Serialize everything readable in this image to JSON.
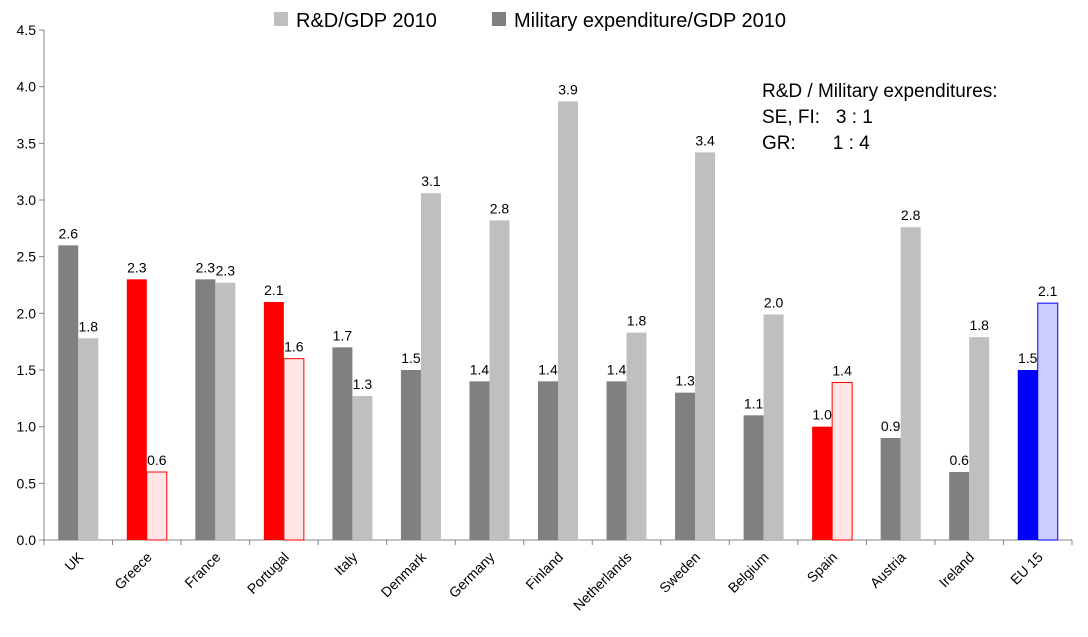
{
  "chart_data": {
    "type": "bar",
    "categories": [
      "UK",
      "Greece",
      "France",
      "Portugal",
      "Italy",
      "Denmark",
      "Germany",
      "Finland",
      "Netherlands",
      "Sweden",
      "Belgium",
      "Spain",
      "Austria",
      "Ireland",
      "EU 15"
    ],
    "series": [
      {
        "name": "Military expenditure/GDP 2010",
        "values": [
          2.6,
          2.3,
          2.3,
          2.1,
          1.7,
          1.5,
          1.4,
          1.4,
          1.4,
          1.3,
          1.1,
          1.0,
          0.9,
          0.6,
          1.5
        ],
        "labels": [
          "2.6",
          "2.3",
          "2.3",
          "2.1",
          "1.7",
          "1.5",
          "1.4",
          "1.4",
          "1.4",
          "1.3",
          "1.1",
          "1.0",
          "0.9",
          "0.6",
          "1.5"
        ]
      },
      {
        "name": "R&D/GDP 2010",
        "values": [
          1.78,
          0.6,
          2.27,
          1.6,
          1.27,
          3.06,
          2.82,
          3.87,
          1.83,
          3.42,
          1.99,
          1.39,
          2.76,
          1.79,
          2.09
        ],
        "labels": [
          "1.8",
          "0.6",
          "2.3",
          "1.6",
          "1.3",
          "3.1",
          "2.8",
          "3.9",
          "1.8",
          "3.4",
          "2.0",
          "1.4",
          "2.8",
          "1.8",
          "2.1"
        ]
      }
    ],
    "yticks": [
      "0.0",
      "0.5",
      "1.0",
      "1.5",
      "2.0",
      "2.5",
      "3.0",
      "3.5",
      "4.0",
      "4.5"
    ],
    "ylim": [
      0,
      4.5
    ],
    "legend_position": "top",
    "grid": false,
    "annotation": [
      "R&D / Military expenditures:",
      "SE, FI:   3 : 1",
      "GR:       1 : 4"
    ],
    "colors": {
      "military": "#808080",
      "rd": "#bfbfbf",
      "highlight_military": "#ff0000",
      "highlight_rd_fill": "#ffe5e5",
      "highlight_rd_stroke": "#ff0000",
      "eu_military": "#0000ff",
      "eu_rd_fill": "#ccccff",
      "eu_rd_stroke": "#0000ff"
    },
    "highlight_red": [
      "Greece",
      "Portugal",
      "Spain"
    ],
    "highlight_blue": [
      "EU 15"
    ]
  }
}
